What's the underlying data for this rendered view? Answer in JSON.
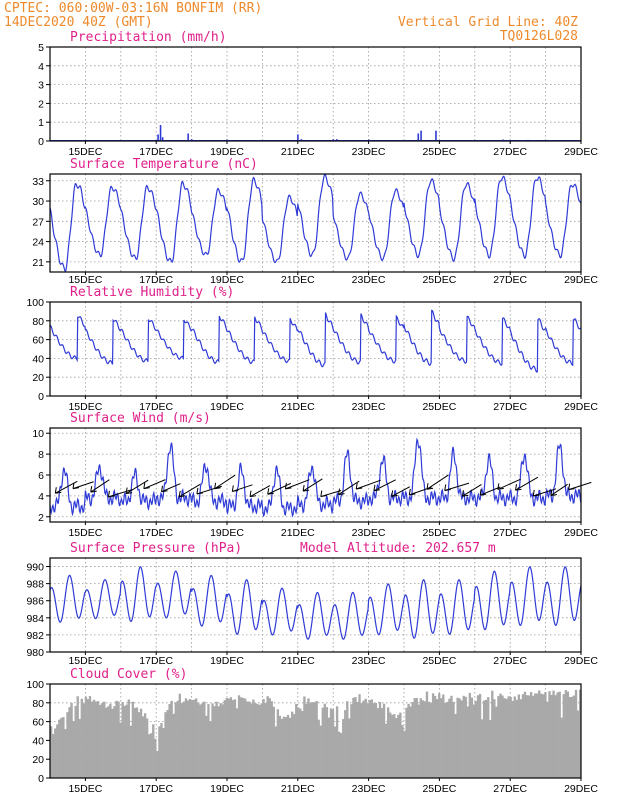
{
  "header": {
    "line1_left": "CPTEC:  060:00W-03:16N  BONFIM (RR)",
    "line2_left": "14DEC2020 40Z (GMT)",
    "line1_right": "Vertical Grid Line: 40Z",
    "line2_right": "TQ0126L028"
  },
  "colors": {
    "header": "#ee8a2c",
    "panel_title": "#e0208a",
    "series": "#2f3bd6",
    "cloud_fill": "#a9a9a9",
    "wind_arrow": "#000000"
  },
  "x_axis": {
    "start_day": 14,
    "end_day": 29,
    "tick_labels": [
      "15DEC",
      "17DEC",
      "19DEC",
      "21DEC",
      "23DEC",
      "25DEC",
      "27DEC",
      "29DEC"
    ]
  },
  "chart_data": [
    {
      "id": "precipitation",
      "type": "bar",
      "title": "Precipitation (mm/h)",
      "ylim": [
        0,
        5
      ],
      "yticks": [
        "0",
        "1",
        "2",
        "3",
        "4",
        "5"
      ],
      "bars": [
        {
          "x": 17.05,
          "y": 0.35
        },
        {
          "x": 17.12,
          "y": 0.85
        },
        {
          "x": 17.18,
          "y": 0.2
        },
        {
          "x": 17.9,
          "y": 0.4
        },
        {
          "x": 18.0,
          "y": 0.1
        },
        {
          "x": 19.0,
          "y": 0.08
        },
        {
          "x": 21.0,
          "y": 0.35
        },
        {
          "x": 21.1,
          "y": 0.1
        },
        {
          "x": 22.0,
          "y": 0.1
        },
        {
          "x": 22.1,
          "y": 0.1
        },
        {
          "x": 23.0,
          "y": 0.08
        },
        {
          "x": 23.8,
          "y": 0.05
        },
        {
          "x": 24.4,
          "y": 0.4
        },
        {
          "x": 24.48,
          "y": 0.55
        },
        {
          "x": 24.9,
          "y": 0.55
        },
        {
          "x": 26.8,
          "y": 0.08
        },
        {
          "x": 27.5,
          "y": 0.06
        }
      ]
    },
    {
      "id": "temperature",
      "type": "line",
      "title": "Surface Temperature (nC)",
      "ylim": [
        19.5,
        34
      ],
      "yticks": [
        "21",
        "24",
        "27",
        "30",
        "33"
      ],
      "ytick_values": [
        21,
        24,
        27,
        30,
        33
      ],
      "daily_max": [
        32.5,
        32,
        32,
        32.5,
        31.5,
        33,
        30.5,
        33.5,
        31,
        31.5,
        33,
        32.5,
        33.5,
        33.5,
        32.5
      ],
      "daily_min": [
        20,
        22,
        21.5,
        21,
        22,
        21,
        21,
        22,
        21.5,
        21.5,
        22,
        21.5,
        22,
        22,
        22
      ]
    },
    {
      "id": "humidity",
      "type": "line",
      "title": "Relative Humidity (%)",
      "ylim": [
        0,
        100
      ],
      "yticks": [
        "0",
        "20",
        "40",
        "60",
        "80",
        "100"
      ],
      "ytick_values": [
        0,
        20,
        40,
        60,
        80,
        100
      ],
      "daily_max": [
        95,
        92,
        92,
        90,
        95,
        93,
        90,
        97,
        95,
        92,
        100,
        93,
        92,
        93,
        92
      ],
      "daily_min": [
        40,
        35,
        37,
        40,
        36,
        36,
        37,
        33,
        36,
        37,
        35,
        37,
        35,
        28,
        35
      ]
    },
    {
      "id": "wind",
      "type": "line",
      "title": "Surface Wind (m/s)",
      "ylim": [
        1.5,
        10.5
      ],
      "yticks": [
        "2",
        "4",
        "6",
        "8",
        "10"
      ],
      "ytick_values": [
        2,
        4,
        6,
        8,
        10
      ],
      "daily_max": [
        6.5,
        6.8,
        6,
        8.8,
        7,
        6.5,
        6.5,
        6.8,
        8,
        7.5,
        9.5,
        8,
        7.5,
        8,
        8.8
      ],
      "daily_min": [
        3,
        3.8,
        3.5,
        3.8,
        3.5,
        3,
        2.8,
        3.2,
        3.5,
        3.8,
        3.8,
        3.8,
        3.8,
        3.8,
        4
      ]
    },
    {
      "id": "pressure",
      "type": "line",
      "title": "Surface Pressure (hPa)",
      "annotation": "Model Altitude: 202.657 m",
      "ylim": [
        980,
        991
      ],
      "yticks": [
        "980",
        "982",
        "984",
        "986",
        "988",
        "990"
      ],
      "ytick_values": [
        980,
        982,
        984,
        986,
        988,
        990
      ],
      "daily_max": [
        989,
        988.5,
        990,
        989.5,
        989,
        988.5,
        987.5,
        987,
        987,
        988,
        988.5,
        988.5,
        989.5,
        990,
        990
      ],
      "daily_min": [
        983,
        983.5,
        983,
        983.5,
        982.5,
        981.5,
        981.5,
        981,
        981,
        981.5,
        981,
        981.5,
        982,
        982.5,
        982.5
      ]
    },
    {
      "id": "cloud_cover",
      "type": "area",
      "title": "Cloud Cover (%)",
      "ylim": [
        0,
        100
      ],
      "yticks": [
        "0",
        "20",
        "40",
        "60",
        "80",
        "100"
      ],
      "ytick_values": [
        0,
        20,
        40,
        60,
        80,
        100
      ],
      "segments": [
        {
          "x": 14.0,
          "y": 55
        },
        {
          "x": 14.3,
          "y": 70
        },
        {
          "x": 14.6,
          "y": 85
        },
        {
          "x": 15.0,
          "y": 92
        },
        {
          "x": 15.4,
          "y": 88
        },
        {
          "x": 15.8,
          "y": 85
        },
        {
          "x": 16.2,
          "y": 90
        },
        {
          "x": 16.6,
          "y": 75
        },
        {
          "x": 17.0,
          "y": 55
        },
        {
          "x": 17.4,
          "y": 92
        },
        {
          "x": 17.8,
          "y": 92
        },
        {
          "x": 18.2,
          "y": 90
        },
        {
          "x": 18.6,
          "y": 85
        },
        {
          "x": 19.0,
          "y": 92
        },
        {
          "x": 19.4,
          "y": 95
        },
        {
          "x": 19.8,
          "y": 88
        },
        {
          "x": 20.2,
          "y": 92
        },
        {
          "x": 20.6,
          "y": 70
        },
        {
          "x": 21.0,
          "y": 85
        },
        {
          "x": 21.4,
          "y": 90
        },
        {
          "x": 21.8,
          "y": 85
        },
        {
          "x": 22.2,
          "y": 80
        },
        {
          "x": 22.6,
          "y": 92
        },
        {
          "x": 23.0,
          "y": 90
        },
        {
          "x": 23.4,
          "y": 85
        },
        {
          "x": 23.8,
          "y": 70
        },
        {
          "x": 24.2,
          "y": 88
        },
        {
          "x": 24.6,
          "y": 92
        },
        {
          "x": 25.0,
          "y": 95
        },
        {
          "x": 25.4,
          "y": 90
        },
        {
          "x": 25.8,
          "y": 95
        },
        {
          "x": 26.2,
          "y": 92
        },
        {
          "x": 26.6,
          "y": 95
        },
        {
          "x": 27.0,
          "y": 92
        },
        {
          "x": 27.4,
          "y": 95
        },
        {
          "x": 27.8,
          "y": 98
        },
        {
          "x": 28.2,
          "y": 96
        },
        {
          "x": 28.6,
          "y": 98
        },
        {
          "x": 29.0,
          "y": 98
        }
      ]
    }
  ]
}
